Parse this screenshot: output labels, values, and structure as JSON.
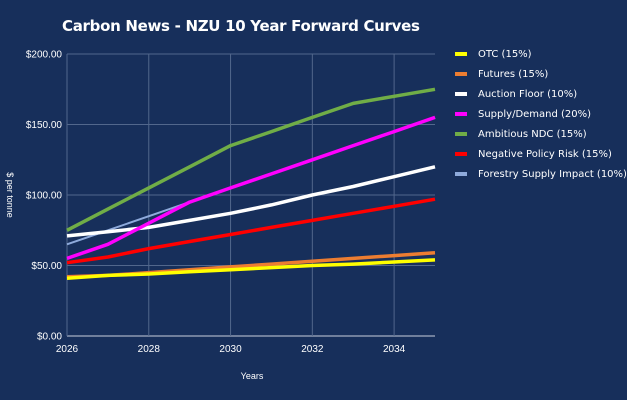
{
  "chart_data": {
    "type": "line",
    "title": "Carbon News - NZU 10 Year Forward Curves",
    "xlabel": "Years",
    "ylabel": "$ per tonne",
    "x": [
      2026,
      2027,
      2028,
      2029,
      2030,
      2031,
      2032,
      2033,
      2034,
      2035
    ],
    "x_ticks": [
      "2026",
      "2028",
      "2030",
      "2032",
      "2034"
    ],
    "y_ticks": [
      "$0.00",
      "$50.00",
      "$100.00",
      "$150.00",
      "$200.00"
    ],
    "ylim": [
      0,
      200
    ],
    "grid": true,
    "legend_position": "right",
    "background": "#172f5b",
    "series": [
      {
        "name": "OTC (15%)",
        "color": "#ffff00",
        "values": [
          41,
          43,
          44,
          45.5,
          47,
          48.5,
          50,
          51,
          52.5,
          54
        ]
      },
      {
        "name": "Futures (15%)",
        "color": "#ed7d31",
        "values": [
          42,
          43,
          45,
          47,
          49,
          51,
          53,
          55,
          57,
          59
        ]
      },
      {
        "name": "Auction Floor (10%)",
        "color": "#ffffff",
        "values": [
          71,
          74,
          77,
          82,
          87,
          93,
          100,
          106,
          113,
          120
        ]
      },
      {
        "name": "Supply/Demand (20%)",
        "color": "#ff00ff",
        "values": [
          55,
          65,
          80,
          95,
          105,
          115,
          125,
          135,
          145,
          155
        ]
      },
      {
        "name": "Ambitious NDC (15%)",
        "color": "#70ad47",
        "values": [
          75,
          90,
          105,
          120,
          135,
          145,
          155,
          165,
          170,
          175
        ]
      },
      {
        "name": "Negative Policy Risk (15%)",
        "color": "#ff0000",
        "values": [
          52,
          56,
          62,
          67,
          72,
          77,
          82,
          87,
          92,
          97
        ]
      },
      {
        "name": "Forestry Supply Impact (10%)",
        "color": "#8eaadb",
        "values": [
          65,
          75,
          85,
          95,
          105,
          115,
          125,
          135,
          145,
          155
        ]
      }
    ]
  }
}
